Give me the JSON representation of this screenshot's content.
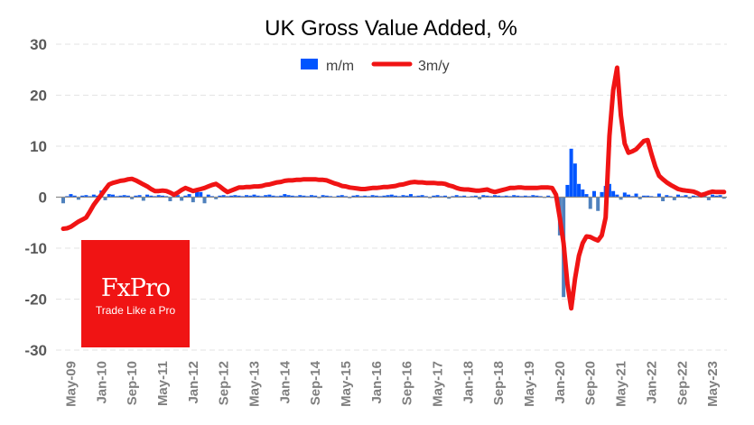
{
  "chart_data": {
    "type": "bar+line",
    "title": "UK Gross Value Added, %",
    "xlabel": "",
    "ylabel": "",
    "ylim": [
      -30,
      30
    ],
    "yticks": [
      30,
      20,
      10,
      0,
      -10,
      -20,
      -30
    ],
    "grid": true,
    "legend_position": "top-center",
    "start_month": "Mar-09",
    "tick_labels": [
      "May-09",
      "Jan-10",
      "Sep-10",
      "May-11",
      "Jan-12",
      "Sep-12",
      "May-13",
      "Jan-14",
      "Sep-14",
      "May-15",
      "Jan-16",
      "Sep-16",
      "May-17",
      "Jan-18",
      "Sep-18",
      "May-19",
      "Jan-20",
      "Sep-20",
      "May-21",
      "Jan-22",
      "Sep-22",
      "May-23"
    ],
    "tick_start_index": 2,
    "tick_step": 8,
    "series": [
      {
        "name": "m/m",
        "type": "bar",
        "color": "#0055ff",
        "negative_color": "#4f81bd",
        "values": [
          -1.2,
          0.2,
          0.6,
          0.3,
          -0.5,
          0.3,
          0.4,
          0.2,
          0.5,
          0.3,
          1.3,
          -0.6,
          0.6,
          0.5,
          0.2,
          0.3,
          0.4,
          0.3,
          -0.4,
          0.3,
          0.4,
          -0.7,
          0.5,
          0.3,
          0.2,
          0.4,
          0.3,
          0.2,
          -0.8,
          0.9,
          0.4,
          -0.7,
          0.3,
          0.6,
          -1.0,
          1.3,
          1.0,
          -1.2,
          0.5,
          0.2,
          -0.4,
          0.3,
          0.4,
          0.2,
          0.3,
          0.4,
          0.3,
          0.2,
          0.4,
          0.3,
          0.5,
          0.3,
          0.2,
          0.4,
          0.5,
          0.3,
          0.2,
          0.3,
          0.6,
          0.4,
          0.3,
          0.2,
          0.4,
          0.3,
          0.2,
          0.4,
          0.3,
          -0.2,
          0.4,
          0.3,
          0.2,
          0.1,
          0.3,
          0.4,
          0.2,
          -0.2,
          0.3,
          0.4,
          0.2,
          0.3,
          0.2,
          0.4,
          0.3,
          0.2,
          0.3,
          0.4,
          0.5,
          0.3,
          0.2,
          0.4,
          0.3,
          0.6,
          0.2,
          0.3,
          0.4,
          0.2,
          -0.2,
          0.3,
          0.4,
          0.2,
          0.3,
          -0.3,
          0.2,
          0.4,
          0.2,
          0.3,
          0.1,
          0.2,
          0.3,
          -0.4,
          0.4,
          0.3,
          0.2,
          0.4,
          0.3,
          0.2,
          0.3,
          0.2,
          0.4,
          0.3,
          0.2,
          0.3,
          0.2,
          0.4,
          0.3,
          0.2,
          -0.1,
          0.3,
          -0.1,
          -0.2,
          -7.5,
          -19.6,
          2.4,
          9.5,
          6.6,
          2.6,
          1.5,
          0.6,
          -2.3,
          1.2,
          -2.7,
          1.0,
          2.2,
          2.6,
          1.2,
          0.5,
          -0.5,
          0.9,
          0.5,
          0.2,
          0.7,
          -0.4,
          0.3,
          0.3,
          0.2,
          0.1,
          0.7,
          -0.8,
          0.4,
          0.2,
          -0.6,
          0.5,
          0.2,
          0.4,
          -0.3,
          0.3,
          0.2,
          0.4,
          0.2,
          -0.6,
          0.5,
          0.3,
          0.4,
          -0.3
        ]
      },
      {
        "name": "3m/y",
        "type": "line",
        "color": "#f01414",
        "values": [
          -6.2,
          -6.1,
          -5.8,
          -5.3,
          -4.8,
          -4.4,
          -4.0,
          -2.8,
          -1.5,
          -0.5,
          0.5,
          1.5,
          2.5,
          2.8,
          3.0,
          3.2,
          3.3,
          3.5,
          3.6,
          3.3,
          2.9,
          2.5,
          2.1,
          1.6,
          1.2,
          1.2,
          1.3,
          1.2,
          0.9,
          0.5,
          0.9,
          1.4,
          1.8,
          1.5,
          1.2,
          1.4,
          1.6,
          1.8,
          2.1,
          2.4,
          2.6,
          2.1,
          1.5,
          1.0,
          1.3,
          1.6,
          1.9,
          1.9,
          2.0,
          2.0,
          2.1,
          2.1,
          2.2,
          2.4,
          2.5,
          2.7,
          2.9,
          3.0,
          3.2,
          3.3,
          3.3,
          3.4,
          3.4,
          3.5,
          3.5,
          3.5,
          3.5,
          3.4,
          3.4,
          3.3,
          3.0,
          2.7,
          2.5,
          2.2,
          2.1,
          1.9,
          1.8,
          1.7,
          1.6,
          1.6,
          1.7,
          1.8,
          1.8,
          1.9,
          2.0,
          2.0,
          2.1,
          2.2,
          2.4,
          2.5,
          2.7,
          2.9,
          3.0,
          2.9,
          2.9,
          2.8,
          2.8,
          2.8,
          2.7,
          2.7,
          2.6,
          2.3,
          2.1,
          1.8,
          1.6,
          1.5,
          1.5,
          1.4,
          1.3,
          1.3,
          1.4,
          1.5,
          1.2,
          1.0,
          1.2,
          1.4,
          1.6,
          1.8,
          1.8,
          1.9,
          1.9,
          1.8,
          1.8,
          1.8,
          1.8,
          1.9,
          1.9,
          1.9,
          1.8,
          0.5,
          -4.0,
          -9.0,
          -17.0,
          -21.8,
          -16.0,
          -11.5,
          -9.0,
          -7.7,
          -7.8,
          -8.2,
          -8.5,
          -7.5,
          -4.0,
          12.0,
          21.0,
          25.4,
          16.0,
          10.5,
          8.7,
          9.0,
          9.4,
          10.2,
          11.0,
          11.2,
          8.5,
          6.0,
          4.2,
          3.5,
          2.9,
          2.4,
          2.0,
          1.6,
          1.4,
          1.3,
          1.2,
          1.1,
          0.8,
          0.4,
          0.6,
          0.9,
          1.1,
          1.0,
          1.0,
          1.0
        ]
      }
    ]
  },
  "logo": {
    "brand": "FxPro",
    "tagline": "Trade Like a Pro"
  }
}
